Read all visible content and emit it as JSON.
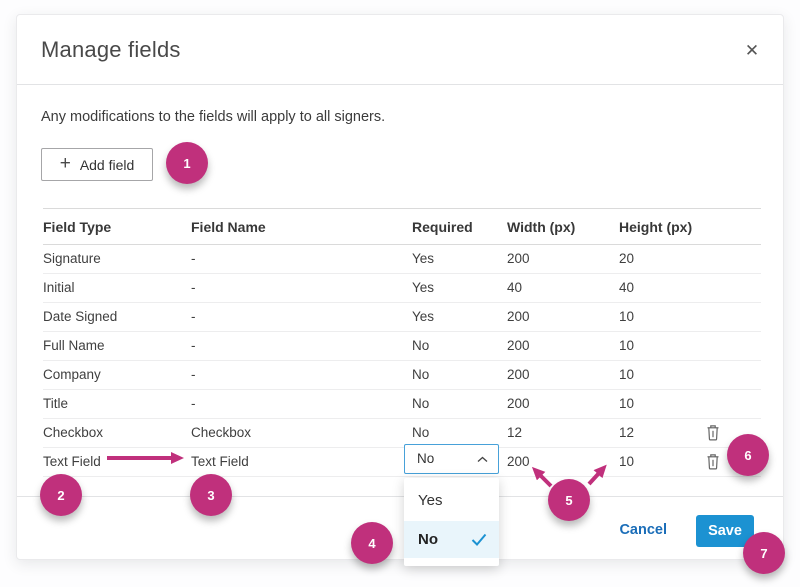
{
  "dialog": {
    "title": "Manage fields",
    "close_icon": "✕",
    "intro": "Any modifications to the fields will apply to all signers.",
    "add_field_icon": "+",
    "add_field_label": "Add field"
  },
  "table": {
    "headers": {
      "type": "Field Type",
      "name": "Field Name",
      "required": "Required",
      "width": "Width (px)",
      "height": "Height (px)"
    },
    "rows": [
      {
        "type": "Signature",
        "name": "-",
        "required": "Yes",
        "width": "200",
        "height": "20",
        "deletable": false,
        "required_editor": false
      },
      {
        "type": "Initial",
        "name": "-",
        "required": "Yes",
        "width": "40",
        "height": "40",
        "deletable": false,
        "required_editor": false
      },
      {
        "type": "Date Signed",
        "name": "-",
        "required": "Yes",
        "width": "200",
        "height": "10",
        "deletable": false,
        "required_editor": false
      },
      {
        "type": "Full Name",
        "name": "-",
        "required": "No",
        "width": "200",
        "height": "10",
        "deletable": false,
        "required_editor": false
      },
      {
        "type": "Company",
        "name": "-",
        "required": "No",
        "width": "200",
        "height": "10",
        "deletable": false,
        "required_editor": false
      },
      {
        "type": "Title",
        "name": "-",
        "required": "No",
        "width": "200",
        "height": "10",
        "deletable": false,
        "required_editor": false
      },
      {
        "type": "Checkbox",
        "name": "Checkbox",
        "required": "No",
        "width": "12",
        "height": "12",
        "deletable": true,
        "required_editor": false
      },
      {
        "type": "Text Field",
        "name": "Text Field",
        "required": "No",
        "width": "200",
        "height": "10",
        "deletable": true,
        "required_editor": true
      }
    ]
  },
  "required_dropdown": {
    "value": "No",
    "options": [
      {
        "label": "Yes",
        "selected": false
      },
      {
        "label": "No",
        "selected": true
      }
    ]
  },
  "footer": {
    "cancel_label": "Cancel",
    "save_label": "Save"
  },
  "annotations": {
    "badge_labels": [
      "1",
      "2",
      "3",
      "4",
      "5",
      "6",
      "7"
    ]
  },
  "colors": {
    "annotation_pink": "#c0307c",
    "primary_button_blue": "#1c92d2",
    "link_blue": "#1a6db8",
    "select_border_blue": "#47a1d9",
    "dropdown_highlight": "#e9f5fb"
  }
}
